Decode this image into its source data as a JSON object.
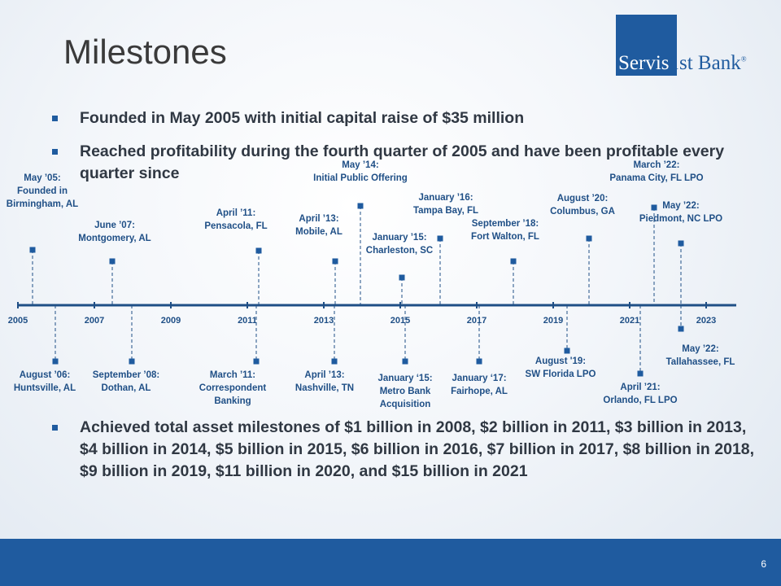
{
  "title": "Milestones",
  "logo": {
    "part1": "Servis",
    "part2": "1st Bank",
    "reg": "®"
  },
  "bullets": [
    "Founded in May 2005 with initial capital raise of $35 million",
    "Reached profitability during the fourth quarter of 2005 and have been profitable every quarter since"
  ],
  "bullet3": "Achieved total asset milestones of $1 billion in 2008, $2 billion in 2011, $3 billion in 2013, $4 billion in 2014, $5 billion in 2015, $6 billion in 2016,  $7 billion in 2017, $8 billion in 2018, $9 billion in 2019, $11 billion in 2020, and $15 billion in 2021",
  "timeline": {
    "years": [
      "2005",
      "2007",
      "2009",
      "2011",
      "2013",
      "2015",
      "2017",
      "2019",
      "2021",
      "2023"
    ],
    "above": [
      {
        "lines": [
          "May ’05:",
          "Founded in",
          "Birmingham, AL"
        ],
        "date": 2005.33
      },
      {
        "lines": [
          "June ’07:",
          "Montgomery, AL"
        ],
        "date": 2007.42
      },
      {
        "lines": [
          "April ’11:",
          "Pensacola, FL"
        ],
        "date": 2011.25
      },
      {
        "lines": [
          "April ’13:",
          "Mobile, AL"
        ],
        "date": 2013.25
      },
      {
        "lines": [
          "May ’14:",
          "Initial Public Offering"
        ],
        "date": 2013.92
      },
      {
        "lines": [
          "January ’15:",
          "Charleston, SC"
        ],
        "date": 2015.08
      },
      {
        "lines": [
          "January ’16:",
          "Tampa Bay, FL"
        ],
        "date": 2016.08
      },
      {
        "lines": [
          "September ’18:",
          "Fort Walton, FL"
        ],
        "date": 2018.0
      },
      {
        "lines": [
          "August ’20:",
          "Columbus, GA"
        ],
        "date": 2020.0
      },
      {
        "lines": [
          "March ’22:",
          "Panama City, FL LPO"
        ],
        "date": 2021.7
      },
      {
        "lines": [
          "May ’22:",
          "Piedmont, NC LPO"
        ],
        "date": 2022.42
      }
    ],
    "below": [
      {
        "lines": [
          "August ’06:",
          "Huntsville, AL"
        ],
        "date": 2005.0
      },
      {
        "lines": [
          "September ’08:",
          "Dothan, AL"
        ],
        "date": 2008.0
      },
      {
        "lines": [
          "March ’11:",
          "Correspondent",
          "Banking"
        ],
        "date": 2011.25
      },
      {
        "lines": [
          "April ’13:",
          "Nashville, TN"
        ],
        "date": 2013.25
      },
      {
        "lines": [
          "January ‘15:",
          "Metro Bank",
          "Acquisition"
        ],
        "date": 2015.08
      },
      {
        "lines": [
          "January ‘17:",
          "Fairhope, AL"
        ],
        "date": 2017.08
      },
      {
        "lines": [
          "August '19:",
          "SW Florida LPO"
        ],
        "date": 2019.42
      },
      {
        "lines": [
          "April ’21:",
          "Orlando, FL LPO"
        ],
        "date": 2021.33
      },
      {
        "lines": [
          "May ’22:",
          "Tallahassee,  FL"
        ],
        "date": 2022.42
      }
    ]
  },
  "page_number": "6",
  "colors": {
    "brand": "#1f5b9f",
    "axis": "#1f4f86",
    "label": "#1f4f86"
  }
}
